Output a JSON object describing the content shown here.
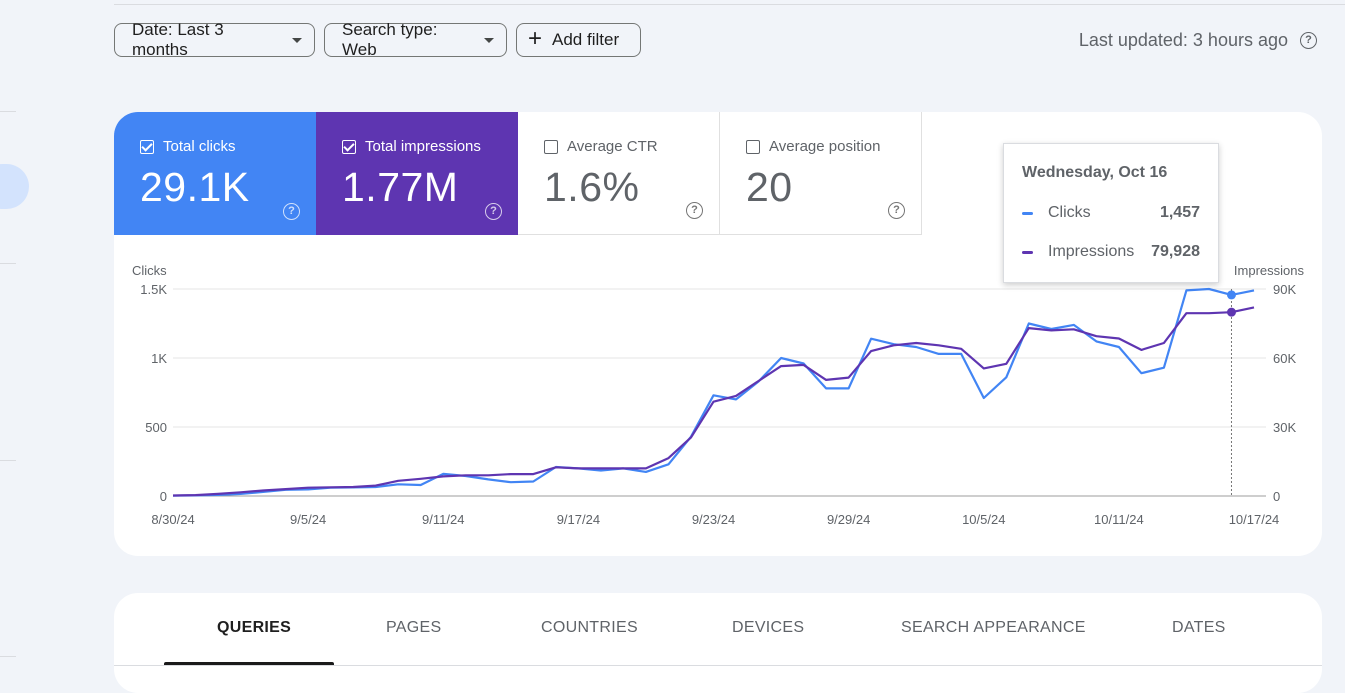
{
  "filters": {
    "date_label": "Date: Last 3 months",
    "search_type_label": "Search type: Web",
    "add_filter_label": "Add filter"
  },
  "last_updated": "Last updated: 3 hours ago",
  "metrics": [
    {
      "label": "Total clicks",
      "value": "29.1K",
      "checked": true,
      "color": "#4285f4"
    },
    {
      "label": "Total impressions",
      "value": "1.77M",
      "checked": true,
      "color": "#5e35b1"
    },
    {
      "label": "Average CTR",
      "value": "1.6%",
      "checked": false
    },
    {
      "label": "Average position",
      "value": "20",
      "checked": false
    }
  ],
  "tooltip": {
    "date": "Wednesday, Oct 16",
    "rows": [
      {
        "name": "Clicks",
        "value": "1,457",
        "color": "#4285f4"
      },
      {
        "name": "Impressions",
        "value": "79,928",
        "color": "#5e35b1"
      }
    ]
  },
  "chart_data": {
    "type": "line",
    "left_axis_title": "Clicks",
    "right_axis_title": "Impressions",
    "x_tick_labels": [
      "8/30/24",
      "9/5/24",
      "9/11/24",
      "9/17/24",
      "9/23/24",
      "9/29/24",
      "10/5/24",
      "10/11/24",
      "10/17/24"
    ],
    "left_ticks": [
      {
        "value": 0,
        "label": "0"
      },
      {
        "value": 500,
        "label": "500"
      },
      {
        "value": 1000,
        "label": "1K"
      },
      {
        "value": 1500,
        "label": "1.5K"
      }
    ],
    "right_ticks": [
      {
        "value": 0,
        "label": "0"
      },
      {
        "value": 30000,
        "label": "30K"
      },
      {
        "value": 60000,
        "label": "60K"
      },
      {
        "value": 90000,
        "label": "90K"
      }
    ],
    "ylim_left": [
      0,
      1500
    ],
    "ylim_right": [
      0,
      90000
    ],
    "x": [
      "8/30/24",
      "8/31/24",
      "9/1/24",
      "9/2/24",
      "9/3/24",
      "9/4/24",
      "9/5/24",
      "9/6/24",
      "9/7/24",
      "9/8/24",
      "9/9/24",
      "9/10/24",
      "9/11/24",
      "9/12/24",
      "9/13/24",
      "9/14/24",
      "9/15/24",
      "9/16/24",
      "9/17/24",
      "9/18/24",
      "9/19/24",
      "9/20/24",
      "9/21/24",
      "9/22/24",
      "9/23/24",
      "9/24/24",
      "9/25/24",
      "9/26/24",
      "9/27/24",
      "9/28/24",
      "9/29/24",
      "9/30/24",
      "10/1/24",
      "10/2/24",
      "10/3/24",
      "10/4/24",
      "10/5/24",
      "10/6/24",
      "10/7/24",
      "10/8/24",
      "10/9/24",
      "10/10/24",
      "10/11/24",
      "10/12/24",
      "10/13/24",
      "10/14/24",
      "10/15/24",
      "10/16/24",
      "10/17/24"
    ],
    "series": [
      {
        "name": "Clicks",
        "axis": "left",
        "color": "#4285f4",
        "values": [
          3,
          4,
          8,
          15,
          30,
          45,
          48,
          60,
          62,
          65,
          85,
          80,
          160,
          145,
          120,
          100,
          105,
          210,
          200,
          185,
          200,
          175,
          230,
          430,
          730,
          700,
          830,
          1000,
          960,
          780,
          780,
          1140,
          1100,
          1080,
          1030,
          1030,
          710,
          860,
          1250,
          1210,
          1240,
          1120,
          1080,
          890,
          930,
          1490,
          1500,
          1457,
          1490
        ]
      },
      {
        "name": "Impressions",
        "axis": "right",
        "color": "#5e35b1",
        "values": [
          200,
          400,
          900,
          1600,
          2400,
          3000,
          3600,
          3800,
          3900,
          4500,
          6600,
          7500,
          8500,
          9000,
          9000,
          9500,
          9500,
          12500,
          12000,
          12000,
          12000,
          12000,
          16500,
          25500,
          41000,
          43500,
          50000,
          56500,
          57000,
          50500,
          51500,
          63000,
          65500,
          66500,
          65500,
          64000,
          55500,
          57500,
          73000,
          72000,
          72500,
          69500,
          68500,
          63500,
          66500,
          79500,
          79500,
          79928,
          82000
        ]
      }
    ],
    "highlighted_x": "10/16/24"
  },
  "tabs": [
    {
      "label": "QUERIES",
      "active": true
    },
    {
      "label": "PAGES",
      "active": false
    },
    {
      "label": "COUNTRIES",
      "active": false
    },
    {
      "label": "DEVICES",
      "active": false
    },
    {
      "label": "SEARCH APPEARANCE",
      "active": false
    },
    {
      "label": "DATES",
      "active": false
    }
  ]
}
